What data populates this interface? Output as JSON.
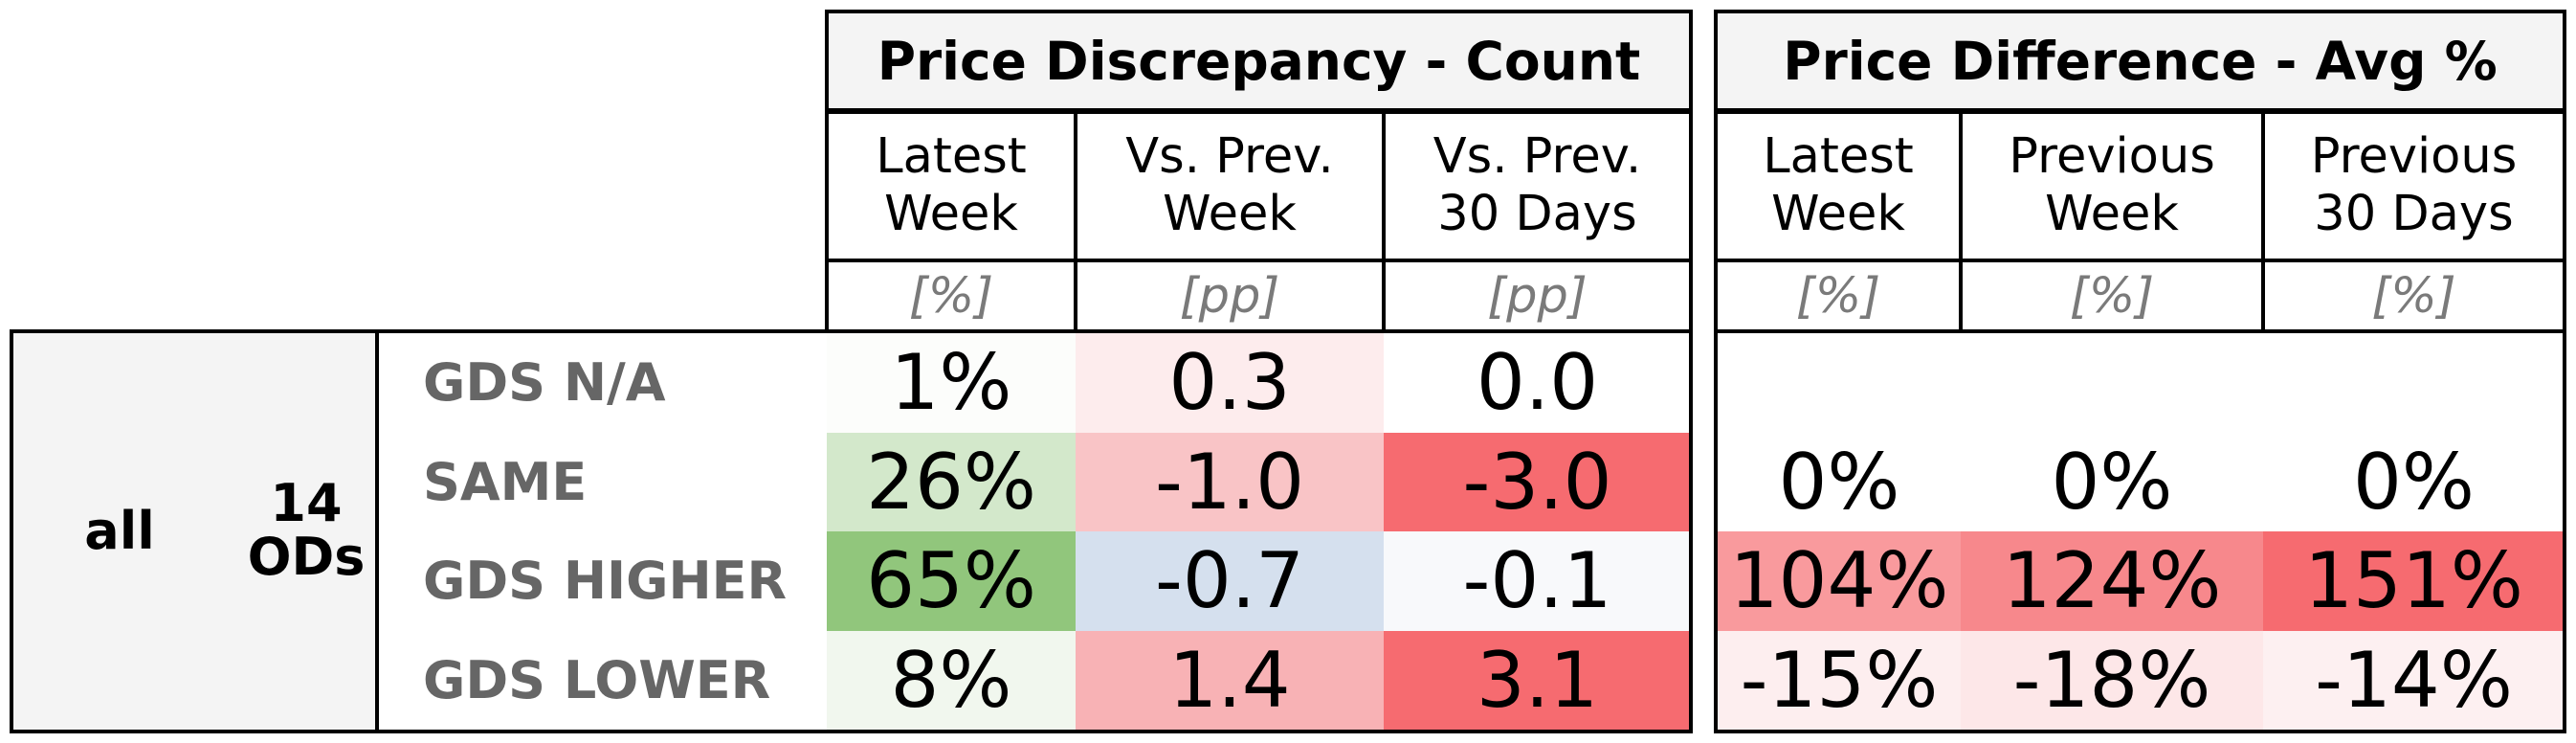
{
  "chart_data": {
    "type": "table",
    "groups": [
      {
        "title": "Price Discrepancy - Count",
        "columns": [
          {
            "label": "Latest\nWeek",
            "unit": "[%]"
          },
          {
            "label": "Vs. Prev.\nWeek",
            "unit": "[pp]"
          },
          {
            "label": "Vs. Prev.\n30 Days",
            "unit": "[pp]"
          }
        ]
      },
      {
        "title": "Price Difference - Avg %",
        "columns": [
          {
            "label": "Latest\nWeek",
            "unit": "[%]"
          },
          {
            "label": "Previous\nWeek",
            "unit": "[%]"
          },
          {
            "label": "Previous\n30 Days",
            "unit": "[%]"
          }
        ]
      }
    ],
    "segment": "all",
    "od_count": "14\nODs",
    "rows": [
      {
        "label": "GDS N/A",
        "count": [
          "1%",
          "0.3",
          "0.0"
        ],
        "count_colors": [
          "#fcfdfb",
          "#fdeced",
          "#ffffff"
        ],
        "avg": [
          "",
          "",
          ""
        ],
        "avg_colors": [
          "#ffffff",
          "#ffffff",
          "#ffffff"
        ]
      },
      {
        "label": "SAME",
        "count": [
          "26%",
          "-1.0",
          "-3.0"
        ],
        "count_colors": [
          "#d3e8cb",
          "#f9c4c6",
          "#f66b70"
        ],
        "avg": [
          "0%",
          "0%",
          "0%"
        ],
        "avg_colors": [
          "#ffffff",
          "#ffffff",
          "#ffffff"
        ]
      },
      {
        "label": "GDS HIGHER",
        "count": [
          "65%",
          "-0.7",
          "-0.1"
        ],
        "count_colors": [
          "#91c67c",
          "#d5e0ee",
          "#f8f9fb"
        ],
        "avg": [
          "104%",
          "124%",
          "151%"
        ],
        "avg_colors": [
          "#f99a9d",
          "#f7888c",
          "#f66b70"
        ]
      },
      {
        "label": "GDS LOWER",
        "count": [
          "8%",
          "1.4",
          "3.1"
        ],
        "count_colors": [
          "#f1f7ee",
          "#f8b2b5",
          "#f66b70"
        ],
        "avg": [
          "-15%",
          "-18%",
          "-14%"
        ],
        "avg_colors": [
          "#fdeeef",
          "#fde7e8",
          "#fdf0f1"
        ]
      }
    ]
  }
}
